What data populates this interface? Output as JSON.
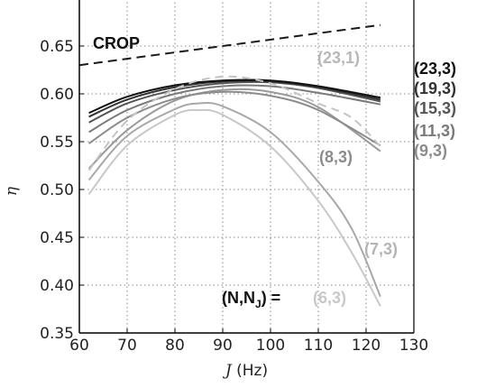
{
  "chart_data": {
    "type": "line",
    "xlabel_var": "J",
    "xlabel_unit": " (Hz)",
    "ylabel": "η",
    "xlim": [
      60,
      130
    ],
    "ylim": [
      0.35,
      0.7
    ],
    "x_ticks": [
      "60",
      "70",
      "80",
      "90",
      "100",
      "110",
      "120",
      "130"
    ],
    "y_ticks": [
      "0.35",
      "0.40",
      "0.45",
      "0.50",
      "0.55",
      "0.60",
      "0.65"
    ],
    "grid": true,
    "crop_label": "CROP",
    "crop_line": {
      "x": [
        60,
        123
      ],
      "y": [
        0.63,
        0.672
      ],
      "color": "#1a1a1a"
    },
    "n_label_prefix": "(N,N",
    "n_label_sub": "J",
    "n_label_suffix": ") =",
    "series": [
      {
        "name": "(6,3)",
        "color": "#c8c8c8",
        "x": [
          62,
          70,
          80,
          85,
          90,
          100,
          110,
          117,
          123
        ],
        "y": [
          0.495,
          0.546,
          0.578,
          0.583,
          0.578,
          0.545,
          0.488,
          0.434,
          0.378
        ]
      },
      {
        "name": "(7,3)",
        "color": "#a8a8a8",
        "x": [
          62,
          70,
          80,
          85,
          90,
          100,
          110,
          117,
          123
        ],
        "y": [
          0.51,
          0.556,
          0.584,
          0.59,
          0.587,
          0.56,
          0.508,
          0.459,
          0.388
        ]
      },
      {
        "name": "(9,3)",
        "color": "#9a9a9a",
        "x": [
          62,
          70,
          80,
          90,
          100,
          110,
          123
        ],
        "y": [
          0.522,
          0.562,
          0.593,
          0.604,
          0.602,
          0.586,
          0.54
        ]
      },
      {
        "name": "(8,3)",
        "color": "#8c8c8c",
        "x": [
          62,
          70,
          80,
          90,
          100,
          110,
          123
        ],
        "y": [
          0.548,
          0.575,
          0.595,
          0.602,
          0.598,
          0.583,
          0.546
        ]
      },
      {
        "name": "(11,3)",
        "color": "#7a7a7a",
        "x": [
          62,
          70,
          80,
          90,
          100,
          110,
          123
        ],
        "y": [
          0.56,
          0.583,
          0.6,
          0.608,
          0.608,
          0.601,
          0.589
        ]
      },
      {
        "name": "(15,3)",
        "color": "#555555",
        "x": [
          62,
          70,
          80,
          90,
          100,
          110,
          123
        ],
        "y": [
          0.57,
          0.59,
          0.604,
          0.611,
          0.612,
          0.606,
          0.592
        ]
      },
      {
        "name": "(19,3)",
        "color": "#333333",
        "x": [
          62,
          70,
          80,
          90,
          100,
          110,
          123
        ],
        "y": [
          0.576,
          0.594,
          0.607,
          0.613,
          0.613,
          0.607,
          0.594
        ]
      },
      {
        "name": "(23,3)",
        "color": "#111111",
        "x": [
          62,
          70,
          80,
          90,
          100,
          110,
          123
        ],
        "y": [
          0.58,
          0.597,
          0.609,
          0.614,
          0.614,
          0.608,
          0.596
        ]
      },
      {
        "name": "(23,1)",
        "color": "#c4c4c4",
        "dashed": true,
        "x": [
          62,
          70,
          80,
          90,
          100,
          110,
          117,
          123
        ],
        "y": [
          0.52,
          0.572,
          0.605,
          0.618,
          0.611,
          0.59,
          0.575,
          0.545
        ]
      }
    ],
    "labels": [
      {
        "text": "(23,1)",
        "color": "#b8b8b8"
      },
      {
        "text": "(23,3)",
        "color": "#111111"
      },
      {
        "text": "(19,3)",
        "color": "#333333"
      },
      {
        "text": "(15,3)",
        "color": "#555555"
      },
      {
        "text": "(11,3)",
        "color": "#7a7a7a"
      },
      {
        "text": "(9,3)",
        "color": "#8c8c8c"
      },
      {
        "text": "(8,3)",
        "color": "#8c8c8c"
      },
      {
        "text": "(7,3)",
        "color": "#b4b4b4"
      },
      {
        "text": "(6,3)",
        "color": "#c8c8c8"
      }
    ]
  }
}
